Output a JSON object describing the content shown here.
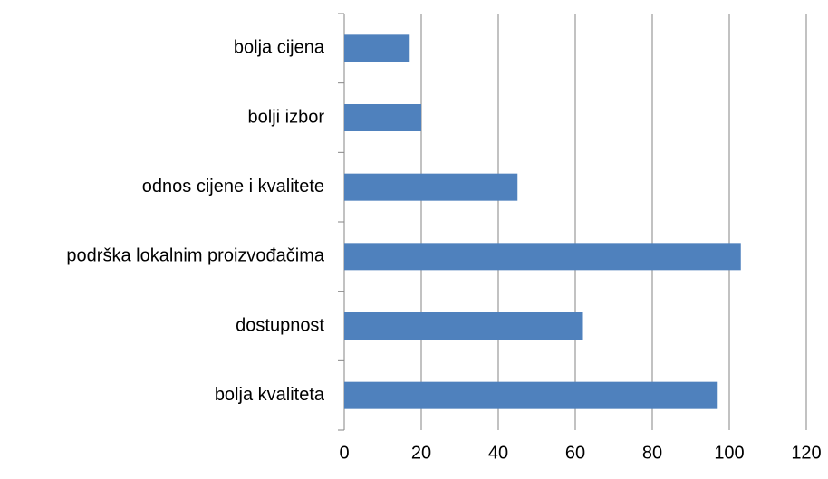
{
  "chart_data": {
    "type": "bar",
    "orientation": "horizontal",
    "categories": [
      "bolja cijena",
      "bolji izbor",
      "odnos cijene i kvalitete",
      "podrška lokalnim proizvođačima",
      "dostupnost",
      "bolja kvaliteta"
    ],
    "values": [
      17,
      20,
      45,
      103,
      62,
      97
    ],
    "color": "#4f81bd",
    "xlim": [
      0,
      120
    ],
    "xticks": [
      0,
      20,
      40,
      60,
      80,
      100,
      120
    ],
    "grid": true
  }
}
